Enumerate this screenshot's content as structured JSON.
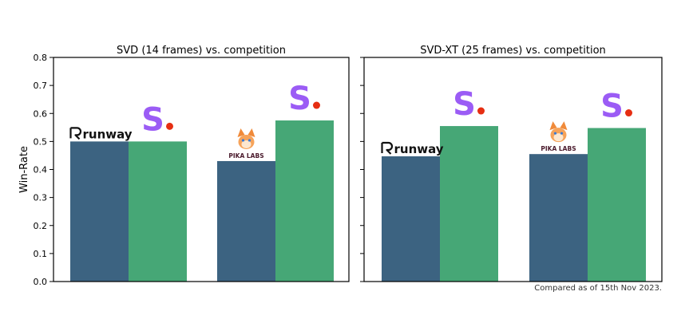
{
  "chart_data": [
    {
      "type": "bar",
      "title": "SVD (14 frames) vs. competition",
      "ylabel": "Win-Rate",
      "ylim": [
        0,
        0.8
      ],
      "yticks": [
        "0.0",
        "0.1",
        "0.2",
        "0.3",
        "0.4",
        "0.5",
        "0.6",
        "0.7",
        "0.8"
      ],
      "groups": [
        {
          "competitor": "runway",
          "competitor_logo": "runway-logo",
          "competitor_value": 0.5,
          "svd_value": 0.5
        },
        {
          "competitor": "PIKA LABS",
          "competitor_logo": "pika-labs-logo",
          "competitor_value": 0.43,
          "svd_value": 0.575
        }
      ]
    },
    {
      "type": "bar",
      "title": "SVD-XT (25 frames) vs. competition",
      "ylabel": "",
      "ylim": [
        0,
        0.8
      ],
      "yticks": [],
      "groups": [
        {
          "competitor": "runway",
          "competitor_logo": "runway-logo",
          "competitor_value": 0.447,
          "svd_value": 0.555
        },
        {
          "competitor": "PIKA LABS",
          "competitor_logo": "pika-labs-logo",
          "competitor_value": 0.455,
          "svd_value": 0.548
        }
      ]
    }
  ],
  "colors": {
    "competitor_bar": "#3c6381",
    "svd_bar": "#46a776",
    "stability_logo": "#9b5cf5",
    "stability_dot": "#e62e12"
  },
  "footnote": "Compared as of 15th Nov 2023."
}
